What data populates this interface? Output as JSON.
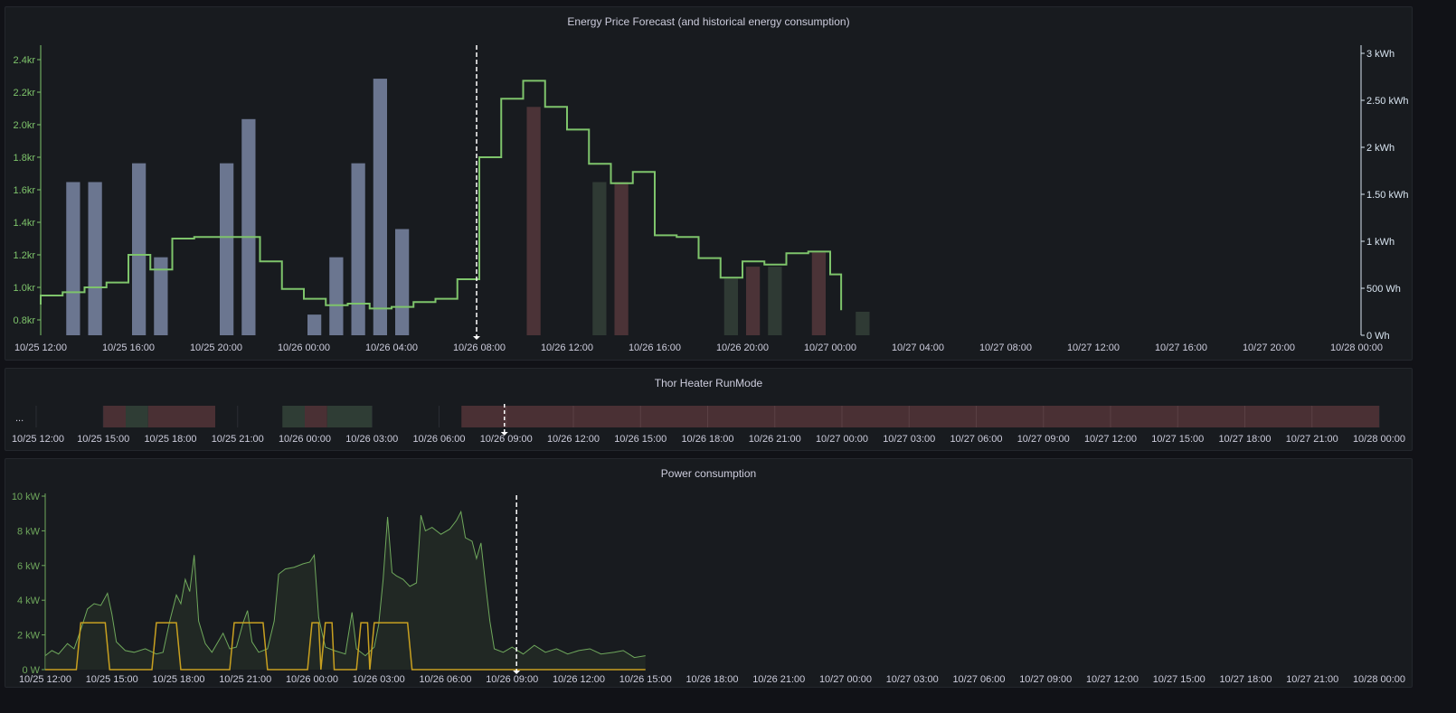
{
  "colors": {
    "price_line": "#7ec46b",
    "right_axis": "#d8e4f0",
    "bar_past": "#6b7690",
    "bar_expensive": "#4b3337",
    "bar_cheap": "#2f3a34",
    "power_line": "#6fa85c",
    "runmode_line": "#c8a020",
    "state_red": "#4a3034",
    "state_green": "#2f3d35",
    "tick_text": "#ccccdc",
    "grid": "#24272d"
  },
  "panels": [
    {
      "title": "Energy Price Forecast (and historical energy consumption)"
    },
    {
      "title": "Thor Heater RunMode"
    },
    {
      "title": "Power consumption"
    }
  ],
  "chart_data": [
    {
      "type": "bar",
      "title": "Energy Price Forecast (and historical energy consumption)",
      "x_tick_labels": [
        "10/25 12:00",
        "10/25 16:00",
        "10/25 20:00",
        "10/26 00:00",
        "10/26 04:00",
        "10/26 08:00",
        "10/26 12:00",
        "10/26 16:00",
        "10/26 20:00",
        "10/27 00:00",
        "10/27 04:00",
        "10/27 08:00",
        "10/27 12:00",
        "10/27 16:00",
        "10/27 20:00",
        "10/28 00:00"
      ],
      "x_range_hours": [
        0,
        60
      ],
      "y_left": {
        "ticks": [
          "0.8kr",
          "1.0kr",
          "1.2kr",
          "1.4kr",
          "1.6kr",
          "1.8kr",
          "2.0kr",
          "2.2kr",
          "2.4kr"
        ],
        "range": [
          0.7,
          2.5
        ]
      },
      "y_right": {
        "ticks": [
          "0 Wh",
          "500 Wh",
          "1 kWh",
          "1.50 kWh",
          "2 kWh",
          "2.50 kWh",
          "3 kWh"
        ],
        "range": [
          0,
          3000
        ]
      },
      "now_hour": 20,
      "price_series": [
        {
          "h": 0,
          "v": 0.95
        },
        {
          "h": 1,
          "v": 0.97
        },
        {
          "h": 2,
          "v": 1.0
        },
        {
          "h": 3,
          "v": 1.03
        },
        {
          "h": 4,
          "v": 1.2
        },
        {
          "h": 5,
          "v": 1.11
        },
        {
          "h": 6,
          "v": 1.3
        },
        {
          "h": 7,
          "v": 1.31
        },
        {
          "h": 8,
          "v": 1.31
        },
        {
          "h": 9,
          "v": 1.31
        },
        {
          "h": 10,
          "v": 1.16
        },
        {
          "h": 11,
          "v": 0.99
        },
        {
          "h": 12,
          "v": 0.93
        },
        {
          "h": 13,
          "v": 0.89
        },
        {
          "h": 14,
          "v": 0.9
        },
        {
          "h": 15,
          "v": 0.87
        },
        {
          "h": 16,
          "v": 0.88
        },
        {
          "h": 17,
          "v": 0.91
        },
        {
          "h": 18,
          "v": 0.93
        },
        {
          "h": 19,
          "v": 1.05
        },
        {
          "h": 20,
          "v": 1.8
        },
        {
          "h": 21,
          "v": 2.16
        },
        {
          "h": 22,
          "v": 2.27
        },
        {
          "h": 23,
          "v": 2.11
        },
        {
          "h": 24,
          "v": 1.97
        },
        {
          "h": 25,
          "v": 1.76
        },
        {
          "h": 26,
          "v": 1.64
        },
        {
          "h": 27,
          "v": 1.71
        },
        {
          "h": 28,
          "v": 1.32
        },
        {
          "h": 29,
          "v": 1.31
        },
        {
          "h": 30,
          "v": 1.18
        },
        {
          "h": 31,
          "v": 1.06
        },
        {
          "h": 32,
          "v": 1.16
        },
        {
          "h": 33,
          "v": 1.14
        },
        {
          "h": 34,
          "v": 1.21
        },
        {
          "h": 35,
          "v": 1.22
        },
        {
          "h": 36,
          "v": 1.08
        },
        {
          "h": 36.5,
          "v": 0.86
        }
      ],
      "consumption_bars": [
        {
          "h": 1,
          "wh": 1630,
          "kind": "past"
        },
        {
          "h": 2,
          "wh": 1630,
          "kind": "past"
        },
        {
          "h": 4,
          "wh": 1830,
          "kind": "past"
        },
        {
          "h": 5,
          "wh": 830,
          "kind": "past"
        },
        {
          "h": 8,
          "wh": 1830,
          "kind": "past"
        },
        {
          "h": 9,
          "wh": 2300,
          "kind": "past"
        },
        {
          "h": 12,
          "wh": 220,
          "kind": "past"
        },
        {
          "h": 13,
          "wh": 830,
          "kind": "past"
        },
        {
          "h": 14,
          "wh": 1830,
          "kind": "past"
        },
        {
          "h": 15,
          "wh": 2730,
          "kind": "past"
        },
        {
          "h": 16,
          "wh": 1130,
          "kind": "past"
        },
        {
          "h": 22,
          "wh": 2430,
          "kind": "expensive"
        },
        {
          "h": 25,
          "wh": 1630,
          "kind": "cheap"
        },
        {
          "h": 26,
          "wh": 1630,
          "kind": "expensive"
        },
        {
          "h": 31,
          "wh": 600,
          "kind": "cheap"
        },
        {
          "h": 32,
          "wh": 730,
          "kind": "expensive"
        },
        {
          "h": 33,
          "wh": 730,
          "kind": "cheap"
        },
        {
          "h": 35,
          "wh": 880,
          "kind": "expensive"
        },
        {
          "h": 37,
          "wh": 250,
          "kind": "cheap"
        }
      ]
    },
    {
      "type": "table",
      "title": "Thor Heater RunMode",
      "x_tick_labels": [
        "10/25 12:00",
        "10/25 15:00",
        "10/25 18:00",
        "10/25 21:00",
        "10/26 00:00",
        "10/26 03:00",
        "10/26 06:00",
        "10/26 09:00",
        "10/26 12:00",
        "10/26 15:00",
        "10/26 18:00",
        "10/26 21:00",
        "10/27 00:00",
        "10/27 03:00",
        "10/27 06:00",
        "10/27 09:00",
        "10/27 12:00",
        "10/27 15:00",
        "10/27 18:00",
        "10/27 21:00",
        "10/28 00:00"
      ],
      "x_range_hours": [
        0,
        60
      ],
      "row_label": "...",
      "now_hour": 21,
      "states": [
        {
          "from": 3,
          "to": 4,
          "kind": "red"
        },
        {
          "from": 4,
          "to": 5,
          "kind": "green"
        },
        {
          "from": 5,
          "to": 8,
          "kind": "red"
        },
        {
          "from": 11,
          "to": 12,
          "kind": "green"
        },
        {
          "from": 12,
          "to": 13,
          "kind": "red"
        },
        {
          "from": 13,
          "to": 15,
          "kind": "green"
        },
        {
          "from": 19,
          "to": 60,
          "kind": "red"
        }
      ]
    },
    {
      "type": "line",
      "title": "Power consumption",
      "x_tick_labels": [
        "10/25 12:00",
        "10/25 15:00",
        "10/25 18:00",
        "10/25 21:00",
        "10/26 00:00",
        "10/26 03:00",
        "10/26 06:00",
        "10/26 09:00",
        "10/26 12:00",
        "10/26 15:00",
        "10/26 18:00",
        "10/26 21:00",
        "10/27 00:00",
        "10/27 03:00",
        "10/27 06:00",
        "10/27 09:00",
        "10/27 12:00",
        "10/27 15:00",
        "10/27 18:00",
        "10/27 21:00",
        "10/28 00:00"
      ],
      "x_range_hours": [
        0,
        60
      ],
      "y": {
        "ticks": [
          "0 W",
          "2 kW",
          "4 kW",
          "6 kW",
          "8 kW",
          "10 kW"
        ],
        "range": [
          0,
          10
        ]
      },
      "now_hour": 21.2,
      "series": [
        {
          "name": "power",
          "points": [
            [
              0,
              0.8
            ],
            [
              0.3,
              1.1
            ],
            [
              0.6,
              0.9
            ],
            [
              1,
              1.5
            ],
            [
              1.3,
              1.2
            ],
            [
              1.6,
              2.3
            ],
            [
              1.9,
              3.5
            ],
            [
              2.2,
              3.8
            ],
            [
              2.5,
              3.7
            ],
            [
              2.8,
              4.4
            ],
            [
              3,
              3.2
            ],
            [
              3.2,
              1.6
            ],
            [
              3.6,
              1.1
            ],
            [
              4,
              1.0
            ],
            [
              4.5,
              1.2
            ],
            [
              5,
              0.9
            ],
            [
              5.3,
              1.0
            ],
            [
              5.6,
              2.8
            ],
            [
              5.9,
              4.3
            ],
            [
              6.1,
              3.8
            ],
            [
              6.3,
              5.2
            ],
            [
              6.5,
              4.5
            ],
            [
              6.7,
              6.6
            ],
            [
              6.9,
              2.8
            ],
            [
              7.2,
              1.5
            ],
            [
              7.5,
              1.0
            ],
            [
              8,
              2.1
            ],
            [
              8.3,
              1.2
            ],
            [
              8.6,
              1.3
            ],
            [
              8.9,
              2.7
            ],
            [
              9.1,
              3.4
            ],
            [
              9.3,
              1.6
            ],
            [
              9.6,
              1.0
            ],
            [
              10,
              1.2
            ],
            [
              10.3,
              2.8
            ],
            [
              10.5,
              5.5
            ],
            [
              10.8,
              5.8
            ],
            [
              11.2,
              5.9
            ],
            [
              11.6,
              6.1
            ],
            [
              11.9,
              6.2
            ],
            [
              12.1,
              6.6
            ],
            [
              12.3,
              3.0
            ],
            [
              12.6,
              1.3
            ],
            [
              13,
              1.1
            ],
            [
              13.5,
              0.9
            ],
            [
              13.8,
              3.3
            ],
            [
              14,
              1.2
            ],
            [
              14.4,
              0.8
            ],
            [
              14.8,
              1.3
            ],
            [
              15,
              2.6
            ],
            [
              15.2,
              5.2
            ],
            [
              15.4,
              8.8
            ],
            [
              15.6,
              5.6
            ],
            [
              15.8,
              5.4
            ],
            [
              16.1,
              5.2
            ],
            [
              16.4,
              4.8
            ],
            [
              16.7,
              5.0
            ],
            [
              16.9,
              8.9
            ],
            [
              17.1,
              8.0
            ],
            [
              17.4,
              8.2
            ],
            [
              17.8,
              7.8
            ],
            [
              18.2,
              8.1
            ],
            [
              18.5,
              8.6
            ],
            [
              18.7,
              9.1
            ],
            [
              18.9,
              7.6
            ],
            [
              19.2,
              7.4
            ],
            [
              19.4,
              6.4
            ],
            [
              19.6,
              7.3
            ],
            [
              19.8,
              5.0
            ],
            [
              20,
              2.8
            ],
            [
              20.2,
              1.2
            ],
            [
              20.6,
              1.0
            ],
            [
              21,
              1.3
            ],
            [
              21.5,
              0.9
            ],
            [
              22,
              1.4
            ],
            [
              22.5,
              1.0
            ],
            [
              23,
              1.2
            ],
            [
              23.5,
              0.9
            ],
            [
              24,
              1.1
            ],
            [
              24.5,
              1.2
            ],
            [
              25,
              0.9
            ],
            [
              25.6,
              1.0
            ],
            [
              26,
              1.1
            ],
            [
              26.5,
              0.7
            ],
            [
              27,
              0.8
            ]
          ]
        },
        {
          "name": "runmode",
          "points": [
            [
              0,
              0
            ],
            [
              1.4,
              0
            ],
            [
              1.6,
              2.7
            ],
            [
              2.7,
              2.7
            ],
            [
              2.9,
              0
            ],
            [
              4.8,
              0
            ],
            [
              5,
              2.7
            ],
            [
              5.9,
              2.7
            ],
            [
              6.1,
              0
            ],
            [
              8.3,
              0
            ],
            [
              8.5,
              2.7
            ],
            [
              9.8,
              2.7
            ],
            [
              10,
              0
            ],
            [
              11.8,
              0
            ],
            [
              12,
              2.7
            ],
            [
              12.3,
              2.7
            ],
            [
              12.4,
              0
            ],
            [
              12.6,
              2.7
            ],
            [
              12.9,
              2.7
            ],
            [
              13,
              0
            ],
            [
              14,
              0
            ],
            [
              14.2,
              2.7
            ],
            [
              14.5,
              2.7
            ],
            [
              14.6,
              0
            ],
            [
              14.8,
              2.7
            ],
            [
              16.3,
              2.7
            ],
            [
              16.5,
              0
            ],
            [
              27,
              0
            ]
          ]
        }
      ]
    }
  ]
}
